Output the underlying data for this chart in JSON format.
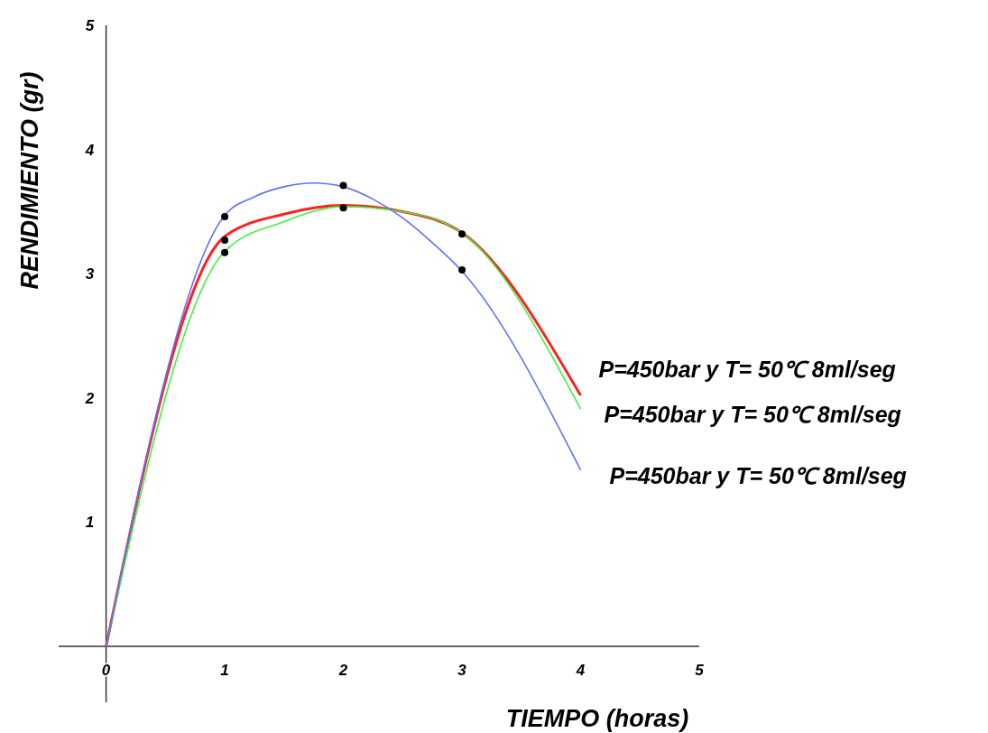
{
  "chart_data": {
    "type": "line",
    "xlabel": "TIEMPO  (horas)",
    "ylabel": "RENDIMIENTO  (gr)",
    "xlim": [
      -0.4,
      5
    ],
    "ylim": [
      -0.45,
      5
    ],
    "xticks": [
      0,
      1,
      2,
      3,
      4,
      5
    ],
    "yticks": [
      1,
      2,
      3,
      4,
      5
    ],
    "series": [
      {
        "name": "P=450bar  y T= 50℃ 8ml/seg",
        "color": "#ff2020",
        "x": [
          0,
          1,
          1.5,
          2,
          2.5,
          3,
          4
        ],
        "values": [
          0,
          3.3,
          3.48,
          3.55,
          3.5,
          3.33,
          2.02
        ]
      },
      {
        "name": "P=450bar  y T= 50℃ 8ml/seg",
        "color": "#40f040",
        "x": [
          0,
          1,
          1.5,
          2,
          2.5,
          3,
          4
        ],
        "values": [
          0,
          3.18,
          3.42,
          3.54,
          3.5,
          3.33,
          1.91
        ]
      },
      {
        "name": "P=450bar  y T= 50℃ 8ml/seg",
        "color": "#6070ff",
        "x": [
          0,
          1,
          1.25,
          1.5,
          1.75,
          2,
          2.25,
          2.5,
          2.75,
          3,
          4
        ],
        "values": [
          0,
          3.47,
          3.62,
          3.7,
          3.73,
          3.7,
          3.6,
          3.45,
          3.25,
          3.02,
          1.42
        ]
      },
      {
        "type": "scatter",
        "color": "#000000",
        "marker": "circle",
        "x": [
          1,
          1,
          1,
          2,
          2,
          3,
          3
        ],
        "values": [
          3.46,
          3.27,
          3.17,
          3.71,
          3.53,
          3.32,
          3.03
        ]
      }
    ]
  }
}
